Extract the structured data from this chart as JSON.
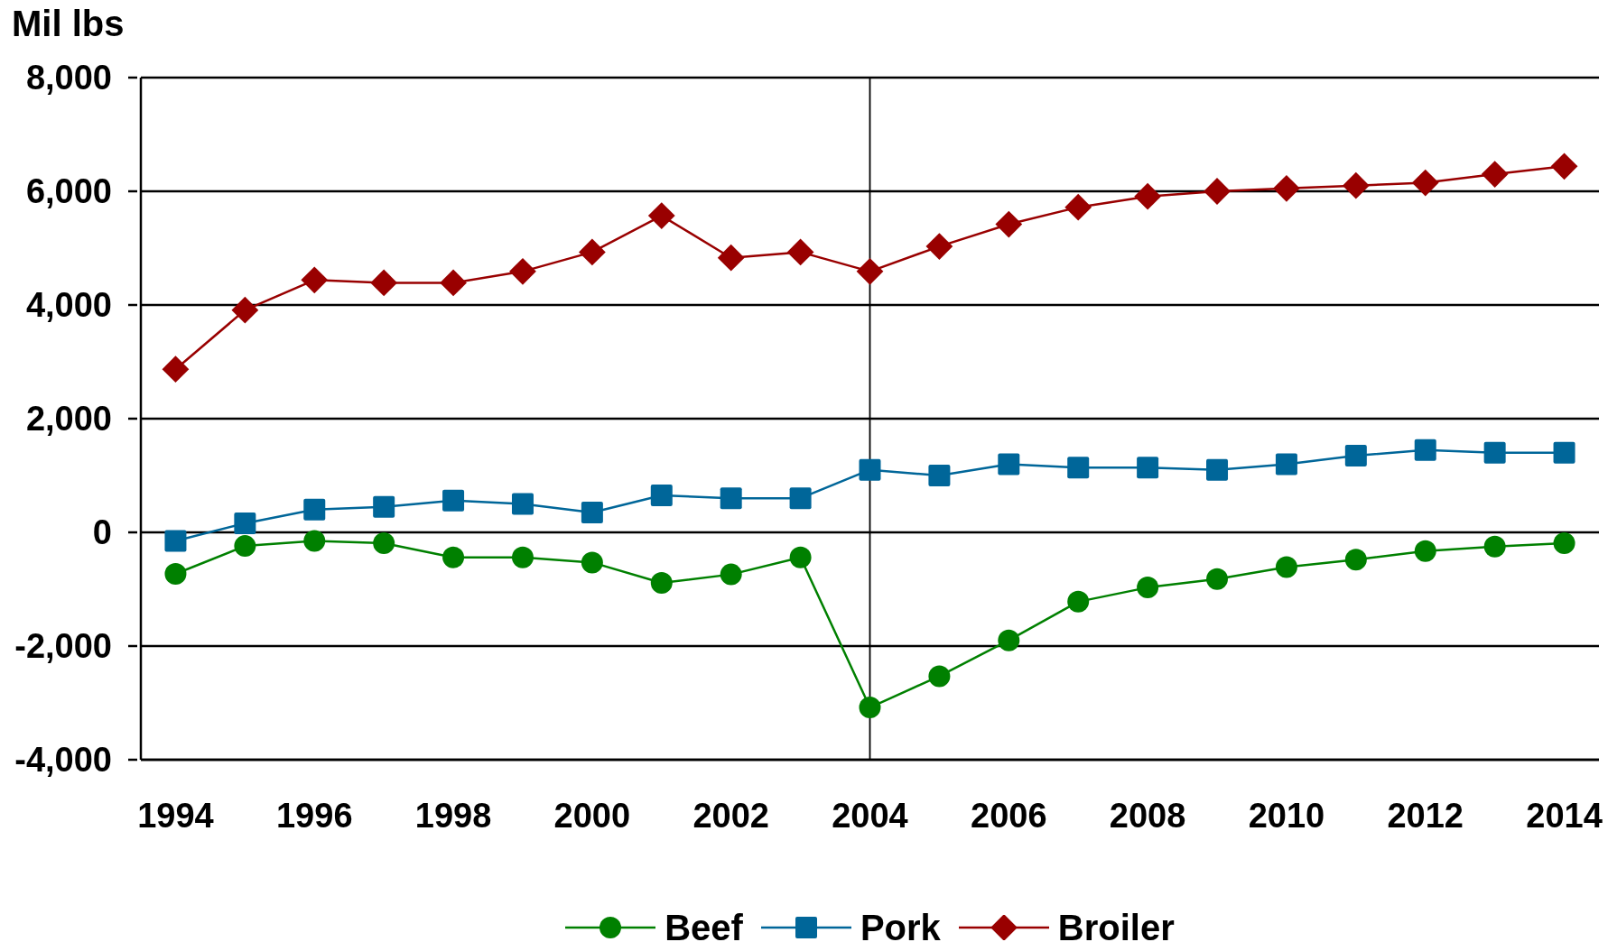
{
  "chart_data": {
    "type": "line",
    "ylabel": "Mil lbs",
    "x": [
      1994,
      1995,
      1996,
      1997,
      1998,
      1999,
      2000,
      2001,
      2002,
      2003,
      2004,
      2005,
      2006,
      2007,
      2008,
      2009,
      2010,
      2011,
      2012,
      2013,
      2014
    ],
    "xlim": [
      1993.5,
      2014.5
    ],
    "xticks": [
      1994,
      1996,
      1998,
      2000,
      2002,
      2004,
      2006,
      2008,
      2010,
      2012,
      2014
    ],
    "ylim": [
      -4000,
      8000
    ],
    "yticks": [
      {
        "value": -4000,
        "label": "-4,000"
      },
      {
        "value": -2000,
        "label": "-2,000"
      },
      0,
      {
        "value": 2000,
        "label": "2,000"
      },
      {
        "value": 4000,
        "label": "4,000"
      },
      {
        "value": 6000,
        "label": "6,000"
      },
      {
        "value": 8000,
        "label": "8,000"
      }
    ],
    "series": [
      {
        "name": "Beef",
        "color": "#008000",
        "marker": "circle",
        "values": [
          -730,
          -240,
          -150,
          -190,
          -440,
          -440,
          -530,
          -890,
          -740,
          -440,
          -3080,
          -2530,
          -1900,
          -1220,
          -970,
          -820,
          -610,
          -480,
          -330,
          -250,
          -190
        ]
      },
      {
        "name": "Pork",
        "color": "#006699",
        "marker": "square",
        "values": [
          -150,
          160,
          400,
          450,
          560,
          500,
          350,
          650,
          600,
          600,
          1100,
          1000,
          1200,
          1140,
          1140,
          1100,
          1200,
          1350,
          1450,
          1400,
          1400
        ]
      },
      {
        "name": "Broiler",
        "color": "#990000",
        "marker": "diamond",
        "values": [
          2870,
          3910,
          4440,
          4390,
          4390,
          4590,
          4930,
          5570,
          4830,
          4930,
          4590,
          5030,
          5420,
          5720,
          5910,
          6000,
          6050,
          6100,
          6150,
          6300,
          6440
        ]
      }
    ],
    "ref_lines": [
      {
        "axis": "x",
        "value": 2004,
        "color": "#000000"
      }
    ],
    "grid": "y",
    "legend": "bottom"
  }
}
